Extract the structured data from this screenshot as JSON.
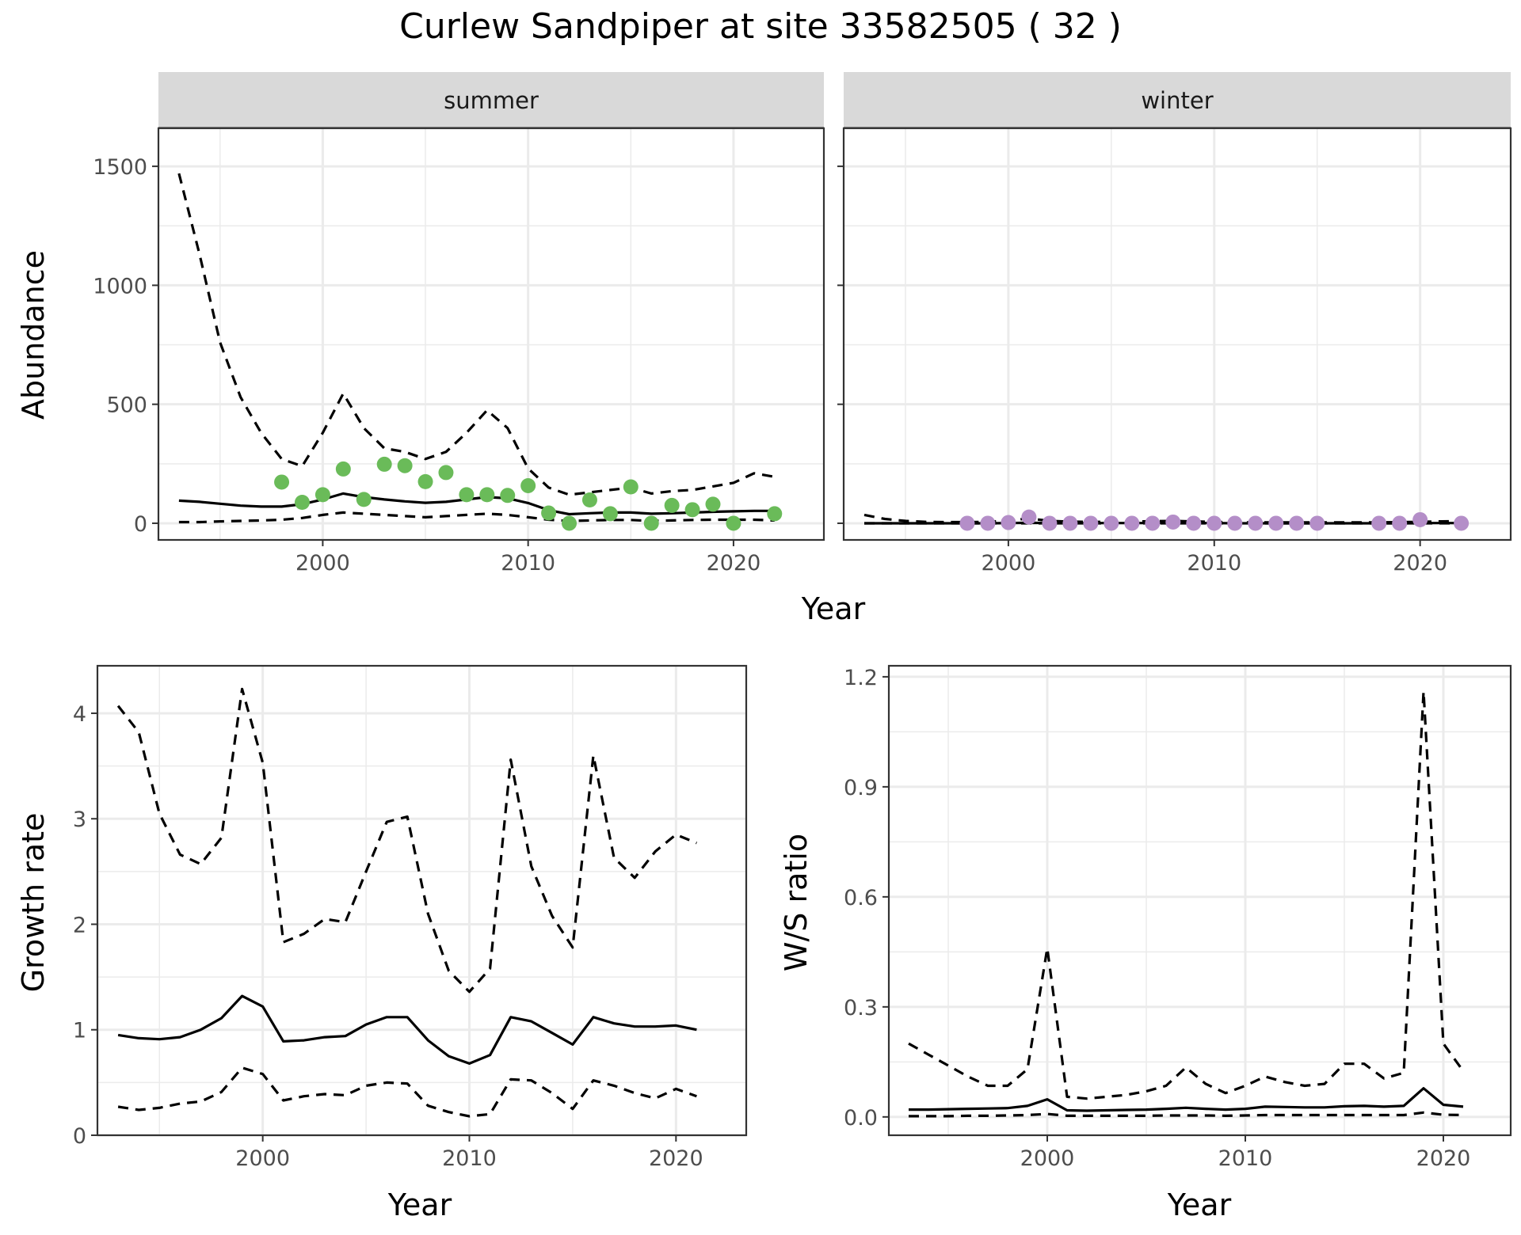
{
  "title": "Curlew Sandpiper at site 33582505 ( 32 )",
  "colors": {
    "summer_points": "#6abb59",
    "winter_points": "#b48ec8",
    "lines": "#000000",
    "strip_fill": "#d9d9d9",
    "grid": "#ebebeb"
  },
  "chart_data": [
    {
      "type": "line",
      "facet": "summer",
      "xlabel": "Year",
      "ylabel": "Abundance",
      "xlim": [
        1992,
        2024.4
      ],
      "ylim": [
        -70,
        1660
      ],
      "xticks": [
        2000,
        2010,
        2020
      ],
      "yticks": [
        0,
        500,
        1000,
        1500
      ],
      "grid": true,
      "x": [
        1993,
        1994,
        1995,
        1996,
        1997,
        1998,
        1999,
        2000,
        2001,
        2002,
        2003,
        2004,
        2005,
        2006,
        2007,
        2008,
        2009,
        2010,
        2011,
        2012,
        2013,
        2014,
        2015,
        2016,
        2017,
        2018,
        2019,
        2020,
        2021,
        2022
      ],
      "series": [
        {
          "role": "estimate",
          "style": "solid",
          "values": [
            95,
            90,
            82,
            74,
            70,
            70,
            80,
            100,
            125,
            110,
            100,
            92,
            86,
            90,
            100,
            110,
            105,
            85,
            55,
            38,
            42,
            45,
            45,
            40,
            42,
            45,
            48,
            50,
            52,
            52
          ]
        },
        {
          "role": "upper",
          "style": "dashed",
          "values": [
            1470,
            1130,
            760,
            530,
            380,
            270,
            240,
            380,
            545,
            400,
            315,
            300,
            270,
            300,
            380,
            475,
            400,
            230,
            150,
            120,
            130,
            140,
            150,
            125,
            135,
            140,
            155,
            170,
            210,
            195
          ]
        },
        {
          "role": "lower",
          "style": "dashed",
          "values": [
            5,
            5,
            8,
            10,
            12,
            15,
            22,
            35,
            45,
            40,
            35,
            30,
            25,
            30,
            35,
            40,
            35,
            25,
            15,
            10,
            12,
            14,
            14,
            10,
            12,
            14,
            15,
            15,
            15,
            12
          ]
        }
      ],
      "points": {
        "x": [
          1998,
          1999,
          2000,
          2001,
          2002,
          2003,
          2004,
          2005,
          2006,
          2007,
          2008,
          2009,
          2010,
          2011,
          2012,
          2013,
          2014,
          2015,
          2016,
          2017,
          2018,
          2019,
          2020,
          2022
        ],
        "values": [
          173,
          88,
          120,
          228,
          100,
          248,
          242,
          175,
          213,
          120,
          120,
          117,
          158,
          43,
          0,
          98,
          40,
          153,
          0,
          75,
          57,
          80,
          0,
          40
        ]
      }
    },
    {
      "type": "line",
      "facet": "winter",
      "xlabel": "Year",
      "ylabel": "",
      "xlim": [
        1992,
        2024.4
      ],
      "ylim": [
        -70,
        1660
      ],
      "xticks": [
        2000,
        2010,
        2020
      ],
      "yticks": [
        0,
        500,
        1000,
        1500
      ],
      "grid": true,
      "x": [
        1993,
        1994,
        1995,
        1996,
        1997,
        1998,
        1999,
        2000,
        2001,
        2002,
        2003,
        2004,
        2005,
        2006,
        2007,
        2008,
        2009,
        2010,
        2011,
        2012,
        2013,
        2014,
        2015,
        2016,
        2017,
        2018,
        2019,
        2020,
        2021,
        2022
      ],
      "series": [
        {
          "role": "estimate",
          "style": "solid",
          "values": [
            0,
            0,
            0,
            0,
            0,
            0,
            0,
            1,
            2,
            1,
            1,
            1,
            1,
            1,
            1,
            1,
            1,
            1,
            0,
            0,
            0,
            0,
            0,
            0,
            0,
            0,
            0,
            1,
            1,
            1
          ]
        },
        {
          "role": "upper",
          "style": "dashed",
          "values": [
            35,
            18,
            10,
            6,
            5,
            5,
            6,
            12,
            20,
            10,
            7,
            6,
            6,
            7,
            9,
            10,
            8,
            6,
            4,
            4,
            4,
            4,
            4,
            4,
            4,
            4,
            5,
            6,
            8,
            9
          ]
        },
        {
          "role": "lower",
          "style": "dashed",
          "values": [
            0,
            0,
            0,
            0,
            0,
            0,
            0,
            0,
            0,
            0,
            0,
            0,
            0,
            0,
            0,
            0,
            0,
            0,
            0,
            0,
            0,
            0,
            0,
            0,
            0,
            0,
            0,
            0,
            0,
            0
          ]
        }
      ],
      "points": {
        "x": [
          1998,
          1999,
          2000,
          2001,
          2002,
          2003,
          2004,
          2005,
          2006,
          2007,
          2008,
          2009,
          2010,
          2011,
          2012,
          2013,
          2014,
          2015,
          2018,
          2019,
          2020,
          2022
        ],
        "values": [
          0,
          0,
          3,
          26,
          0,
          0,
          0,
          0,
          0,
          0,
          5,
          0,
          0,
          0,
          0,
          0,
          0,
          0,
          0,
          0,
          15,
          0
        ]
      }
    },
    {
      "type": "line",
      "xlabel": "Year",
      "ylabel": "Growth rate",
      "xlim": [
        1992,
        2023.4
      ],
      "ylim": [
        0,
        4.45
      ],
      "xticks": [
        2000,
        2010,
        2020
      ],
      "yticks": [
        0,
        1,
        2,
        3,
        4
      ],
      "grid": true,
      "x": [
        1993,
        1994,
        1995,
        1996,
        1997,
        1998,
        1999,
        2000,
        2001,
        2002,
        2003,
        2004,
        2005,
        2006,
        2007,
        2008,
        2009,
        2010,
        2011,
        2012,
        2013,
        2014,
        2015,
        2016,
        2017,
        2018,
        2019,
        2020,
        2021
      ],
      "series": [
        {
          "role": "estimate",
          "style": "solid",
          "values": [
            0.95,
            0.92,
            0.91,
            0.93,
            1.0,
            1.11,
            1.32,
            1.22,
            0.89,
            0.9,
            0.93,
            0.94,
            1.05,
            1.12,
            1.12,
            0.9,
            0.75,
            0.68,
            0.76,
            1.12,
            1.08,
            0.97,
            0.86,
            1.12,
            1.06,
            1.03,
            1.03,
            1.04,
            1.0
          ]
        },
        {
          "role": "upper",
          "style": "dashed",
          "values": [
            4.07,
            3.82,
            3.05,
            2.66,
            2.57,
            2.82,
            4.23,
            3.53,
            1.83,
            1.91,
            2.05,
            2.02,
            2.5,
            2.97,
            3.02,
            2.1,
            1.56,
            1.36,
            1.58,
            3.56,
            2.55,
            2.08,
            1.78,
            3.6,
            2.63,
            2.44,
            2.69,
            2.85,
            2.77
          ]
        },
        {
          "role": "lower",
          "style": "dashed",
          "values": [
            0.27,
            0.24,
            0.26,
            0.3,
            0.32,
            0.41,
            0.64,
            0.58,
            0.33,
            0.37,
            0.39,
            0.38,
            0.47,
            0.5,
            0.49,
            0.28,
            0.22,
            0.18,
            0.2,
            0.53,
            0.52,
            0.4,
            0.25,
            0.52,
            0.47,
            0.4,
            0.35,
            0.44,
            0.37
          ]
        }
      ]
    },
    {
      "type": "line",
      "xlabel": "Year",
      "ylabel": "W/S ratio",
      "xlim": [
        1992,
        2023.4
      ],
      "ylim": [
        -0.05,
        1.23
      ],
      "xticks": [
        2000,
        2010,
        2020
      ],
      "yticks": [
        "0.0",
        "0.3",
        "0.6",
        "0.9",
        "1.2"
      ],
      "grid": true,
      "x": [
        1993,
        1994,
        1995,
        1996,
        1997,
        1998,
        1999,
        2000,
        2001,
        2002,
        2003,
        2004,
        2005,
        2006,
        2007,
        2008,
        2009,
        2010,
        2011,
        2012,
        2013,
        2014,
        2015,
        2016,
        2017,
        2018,
        2019,
        2020,
        2021
      ],
      "series": [
        {
          "role": "estimate",
          "style": "solid",
          "values": [
            0.02,
            0.02,
            0.021,
            0.022,
            0.023,
            0.024,
            0.03,
            0.048,
            0.018,
            0.017,
            0.018,
            0.019,
            0.02,
            0.022,
            0.025,
            0.022,
            0.02,
            0.022,
            0.028,
            0.027,
            0.026,
            0.026,
            0.029,
            0.03,
            0.028,
            0.03,
            0.078,
            0.033,
            0.028
          ]
        },
        {
          "role": "upper",
          "style": "dashed",
          "values": [
            0.2,
            0.17,
            0.14,
            0.11,
            0.085,
            0.085,
            0.13,
            0.46,
            0.055,
            0.05,
            0.055,
            0.06,
            0.07,
            0.085,
            0.135,
            0.09,
            0.065,
            0.085,
            0.11,
            0.095,
            0.085,
            0.09,
            0.145,
            0.145,
            0.105,
            0.12,
            1.16,
            0.2,
            0.125
          ]
        },
        {
          "role": "lower",
          "style": "dashed",
          "values": [
            0.002,
            0.002,
            0.002,
            0.003,
            0.003,
            0.004,
            0.005,
            0.008,
            0.003,
            0.003,
            0.003,
            0.003,
            0.003,
            0.004,
            0.004,
            0.004,
            0.003,
            0.004,
            0.005,
            0.005,
            0.005,
            0.005,
            0.005,
            0.005,
            0.005,
            0.005,
            0.012,
            0.006,
            0.005
          ]
        }
      ]
    }
  ],
  "shared": {
    "top_xlabel": "Year",
    "top_ylabel": "Abundance",
    "strip_summer": "summer",
    "strip_winter": "winter"
  }
}
